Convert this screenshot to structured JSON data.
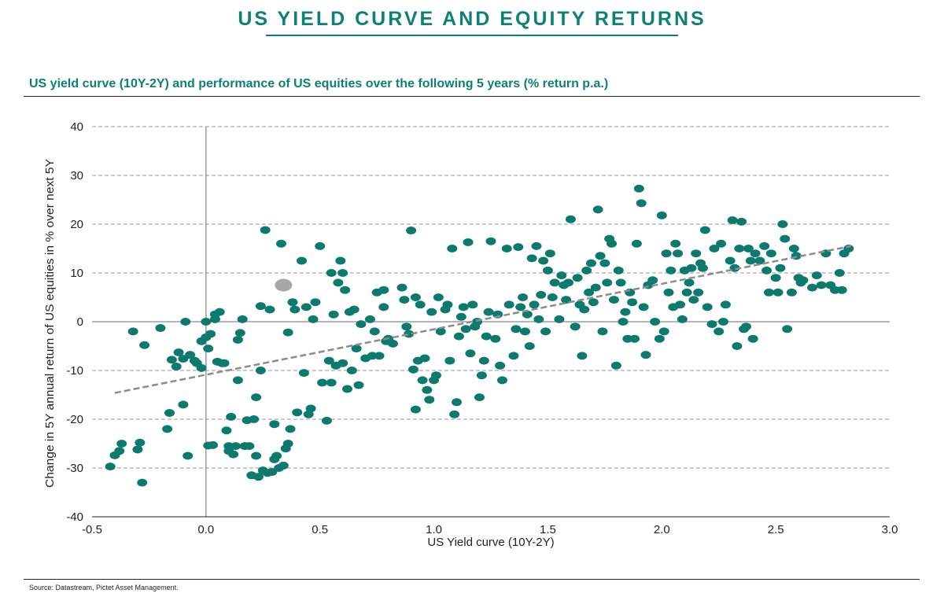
{
  "header": {
    "title": "US YIELD CURVE AND EQUITY RETURNS",
    "subtitle": "US yield curve (10Y-2Y) and performance of US equities over the following 5 years (% return p.a.)"
  },
  "footer": {
    "source": "Source: Datastream, Pictet Asset Management."
  },
  "colors": {
    "accent": "#0e8176",
    "point": "#0e7a6e",
    "highlight": "#a6a6a6",
    "trend": "#8c8c8c",
    "grid": "#9a9a9a"
  },
  "chart_data": {
    "type": "scatter",
    "title": "US yield curve (10Y-2Y) and performance of US equities over the following 5 years (% return p.a.)",
    "xlabel": "US Yield curve (10Y-2Y)",
    "ylabel": "Change in 5Y annual return of US equities in % over next 5Y",
    "xlim": [
      -0.5,
      3.0
    ],
    "ylim": [
      -40,
      40
    ],
    "x_ticks": [
      "-0.5",
      "0.0",
      "0.5",
      "1.0",
      "1.5",
      "2.0",
      "2.5",
      "3.0"
    ],
    "y_ticks": [
      "40",
      "30",
      "20",
      "10",
      "0",
      "-10",
      "-20",
      "-30",
      "-40"
    ],
    "grid": "horizontal dashed",
    "trendline": {
      "style": "dashed",
      "x": [
        -0.4,
        2.83
      ],
      "y": [
        -14.6,
        15.5
      ]
    },
    "highlight_point": {
      "x": 0.34,
      "y": 7.5
    },
    "series": [
      {
        "name": "Observations",
        "points": [
          [
            -0.42,
            -29.7
          ],
          [
            -0.4,
            -27.4
          ],
          [
            -0.38,
            -26.5
          ],
          [
            -0.37,
            -25
          ],
          [
            -0.32,
            -2
          ],
          [
            -0.3,
            -26.2
          ],
          [
            -0.29,
            -24.8
          ],
          [
            -0.28,
            -33
          ],
          [
            -0.27,
            -4.8
          ],
          [
            -0.2,
            -1.3
          ],
          [
            -0.17,
            -22
          ],
          [
            -0.16,
            -18.7
          ],
          [
            -0.15,
            -7.8
          ],
          [
            -0.13,
            -9.2
          ],
          [
            -0.12,
            -6.3
          ],
          [
            -0.1,
            -17
          ],
          [
            -0.1,
            -7.6
          ],
          [
            -0.09,
            0
          ],
          [
            -0.08,
            -27.5
          ],
          [
            -0.07,
            -6.8
          ],
          [
            -0.05,
            -8
          ],
          [
            -0.04,
            -8.5
          ],
          [
            -0.02,
            -4
          ],
          [
            -0.02,
            -9.5
          ],
          [
            0,
            -3.2
          ],
          [
            0,
            0
          ],
          [
            0.01,
            -25.4
          ],
          [
            0.01,
            -5.5
          ],
          [
            0.02,
            -2.5
          ],
          [
            0.03,
            -25.3
          ],
          [
            0.04,
            0.5
          ],
          [
            0.04,
            1.5
          ],
          [
            0.05,
            -8.2
          ],
          [
            0.06,
            2
          ],
          [
            0.07,
            -8.5
          ],
          [
            0.08,
            -8.5
          ],
          [
            0.09,
            -22.3
          ],
          [
            0.1,
            -25.5
          ],
          [
            0.1,
            -26.5
          ],
          [
            0.11,
            -19.5
          ],
          [
            0.12,
            -27.2
          ],
          [
            0.13,
            -25.5
          ],
          [
            0.14,
            -12
          ],
          [
            0.14,
            -3.7
          ],
          [
            0.15,
            -2.3
          ],
          [
            0.16,
            0.5
          ],
          [
            0.17,
            -25.5
          ],
          [
            0.18,
            -20.2
          ],
          [
            0.19,
            -25.5
          ],
          [
            0.2,
            -31.5
          ],
          [
            0.21,
            -20
          ],
          [
            0.22,
            -15.5
          ],
          [
            0.22,
            -27.5
          ],
          [
            0.23,
            -31.8
          ],
          [
            0.24,
            -10
          ],
          [
            0.24,
            3.2
          ],
          [
            0.25,
            -30.5
          ],
          [
            0.26,
            18.8
          ],
          [
            0.27,
            -31
          ],
          [
            0.28,
            2.5
          ],
          [
            0.29,
            -30.8
          ],
          [
            0.3,
            -28.2
          ],
          [
            0.3,
            -21
          ],
          [
            0.31,
            -27.5
          ],
          [
            0.32,
            -30
          ],
          [
            0.33,
            16
          ],
          [
            0.34,
            -29.5
          ],
          [
            0.35,
            -26
          ],
          [
            0.36,
            -25
          ],
          [
            0.36,
            -2.2
          ],
          [
            0.37,
            -22
          ],
          [
            0.38,
            4
          ],
          [
            0.39,
            2.5
          ],
          [
            0.4,
            -18.6
          ],
          [
            0.42,
            12.5
          ],
          [
            0.43,
            -10.5
          ],
          [
            0.44,
            3
          ],
          [
            0.45,
            -19
          ],
          [
            0.46,
            -17.8
          ],
          [
            0.47,
            0.5
          ],
          [
            0.48,
            4
          ],
          [
            0.5,
            15.5
          ],
          [
            0.51,
            -12.5
          ],
          [
            0.53,
            -20.3
          ],
          [
            0.54,
            -8
          ],
          [
            0.55,
            10
          ],
          [
            0.55,
            -12.5
          ],
          [
            0.56,
            1.5
          ],
          [
            0.57,
            -9
          ],
          [
            0.58,
            8
          ],
          [
            0.59,
            12.5
          ],
          [
            0.6,
            -8.5
          ],
          [
            0.6,
            10
          ],
          [
            0.61,
            6.5
          ],
          [
            0.62,
            -13.8
          ],
          [
            0.63,
            2
          ],
          [
            0.64,
            -10
          ],
          [
            0.65,
            2.5
          ],
          [
            0.66,
            -5.5
          ],
          [
            0.67,
            -13
          ],
          [
            0.68,
            -0.5
          ],
          [
            0.7,
            -7.5
          ],
          [
            0.72,
            0.5
          ],
          [
            0.73,
            -7
          ],
          [
            0.74,
            -2
          ],
          [
            0.75,
            6
          ],
          [
            0.76,
            -7
          ],
          [
            0.78,
            3
          ],
          [
            0.78,
            6.5
          ],
          [
            0.79,
            -4
          ],
          [
            0.8,
            -3.5
          ],
          [
            0.82,
            -4.5
          ],
          [
            0.86,
            7
          ],
          [
            0.87,
            4.5
          ],
          [
            0.88,
            -1
          ],
          [
            0.89,
            -2.5
          ],
          [
            0.9,
            18.7
          ],
          [
            0.91,
            -9.8
          ],
          [
            0.92,
            -18
          ],
          [
            0.92,
            5
          ],
          [
            0.93,
            -8
          ],
          [
            0.94,
            3.5
          ],
          [
            0.95,
            -12
          ],
          [
            0.96,
            -7.5
          ],
          [
            0.97,
            -14
          ],
          [
            0.98,
            -16
          ],
          [
            0.99,
            2
          ],
          [
            1.0,
            -12
          ],
          [
            1.01,
            -11
          ],
          [
            1.02,
            5
          ],
          [
            1.03,
            -2
          ],
          [
            1.05,
            2.5
          ],
          [
            1.06,
            3.5
          ],
          [
            1.07,
            -8
          ],
          [
            1.08,
            15
          ],
          [
            1.09,
            -19
          ],
          [
            1.1,
            -16.5
          ],
          [
            1.11,
            -3
          ],
          [
            1.12,
            1
          ],
          [
            1.13,
            3
          ],
          [
            1.14,
            -1.5
          ],
          [
            1.15,
            16.3
          ],
          [
            1.16,
            -6.5
          ],
          [
            1.17,
            3.5
          ],
          [
            1.18,
            -1
          ],
          [
            1.19,
            0
          ],
          [
            1.2,
            -15.5
          ],
          [
            1.21,
            -11
          ],
          [
            1.22,
            -8
          ],
          [
            1.23,
            -3
          ],
          [
            1.24,
            2
          ],
          [
            1.25,
            16.5
          ],
          [
            1.27,
            -3.5
          ],
          [
            1.28,
            1.5
          ],
          [
            1.29,
            -9
          ],
          [
            1.3,
            -12
          ],
          [
            1.32,
            15
          ],
          [
            1.33,
            3.5
          ],
          [
            1.35,
            -7
          ],
          [
            1.36,
            -1.5
          ],
          [
            1.37,
            15.3
          ],
          [
            1.38,
            3
          ],
          [
            1.39,
            5
          ],
          [
            1.4,
            -2
          ],
          [
            1.41,
            1.5
          ],
          [
            1.42,
            -5
          ],
          [
            1.43,
            13
          ],
          [
            1.44,
            3.5
          ],
          [
            1.45,
            15.5
          ],
          [
            1.46,
            0.5
          ],
          [
            1.47,
            5.5
          ],
          [
            1.48,
            12.5
          ],
          [
            1.49,
            -2
          ],
          [
            1.5,
            10.5
          ],
          [
            1.51,
            14
          ],
          [
            1.52,
            5
          ],
          [
            1.53,
            8
          ],
          [
            1.55,
            0.5
          ],
          [
            1.56,
            9.5
          ],
          [
            1.57,
            7.5
          ],
          [
            1.58,
            4.5
          ],
          [
            1.59,
            8
          ],
          [
            1.6,
            21
          ],
          [
            1.62,
            -1
          ],
          [
            1.63,
            9
          ],
          [
            1.64,
            3.5
          ],
          [
            1.65,
            -7
          ],
          [
            1.66,
            2.5
          ],
          [
            1.67,
            10.5
          ],
          [
            1.68,
            6
          ],
          [
            1.69,
            12
          ],
          [
            1.7,
            4
          ],
          [
            1.71,
            7
          ],
          [
            1.72,
            23
          ],
          [
            1.73,
            13.5
          ],
          [
            1.74,
            -2
          ],
          [
            1.75,
            12
          ],
          [
            1.76,
            8
          ],
          [
            1.77,
            17
          ],
          [
            1.78,
            16
          ],
          [
            1.79,
            4.5
          ],
          [
            1.8,
            -9
          ],
          [
            1.81,
            10.5
          ],
          [
            1.82,
            8
          ],
          [
            1.83,
            0
          ],
          [
            1.84,
            2
          ],
          [
            1.85,
            -3.5
          ],
          [
            1.86,
            6
          ],
          [
            1.87,
            4
          ],
          [
            1.88,
            -3.5
          ],
          [
            1.89,
            16
          ],
          [
            1.9,
            27.3
          ],
          [
            1.91,
            24.3
          ],
          [
            1.92,
            3
          ],
          [
            1.93,
            -6.8
          ],
          [
            1.94,
            7.5
          ],
          [
            1.96,
            8.5
          ],
          [
            1.97,
            0
          ],
          [
            1.99,
            -3.5
          ],
          [
            2.0,
            21.8
          ],
          [
            2.01,
            -2
          ],
          [
            2.02,
            14
          ],
          [
            2.03,
            6
          ],
          [
            2.04,
            10.5
          ],
          [
            2.05,
            3
          ],
          [
            2.06,
            16
          ],
          [
            2.07,
            14
          ],
          [
            2.08,
            3.5
          ],
          [
            2.09,
            0.5
          ],
          [
            2.1,
            10.5
          ],
          [
            2.11,
            6
          ],
          [
            2.12,
            8
          ],
          [
            2.13,
            11
          ],
          [
            2.14,
            4.5
          ],
          [
            2.15,
            14
          ],
          [
            2.16,
            6
          ],
          [
            2.17,
            12
          ],
          [
            2.18,
            11
          ],
          [
            2.19,
            18.8
          ],
          [
            2.2,
            3
          ],
          [
            2.22,
            -0.5
          ],
          [
            2.23,
            15
          ],
          [
            2.25,
            -2
          ],
          [
            2.26,
            16
          ],
          [
            2.27,
            0
          ],
          [
            2.28,
            3.5
          ],
          [
            2.3,
            12.5
          ],
          [
            2.31,
            20.8
          ],
          [
            2.32,
            11
          ],
          [
            2.33,
            -5
          ],
          [
            2.34,
            15
          ],
          [
            2.35,
            20.5
          ],
          [
            2.36,
            -1.5
          ],
          [
            2.37,
            -1
          ],
          [
            2.38,
            15
          ],
          [
            2.39,
            12.5
          ],
          [
            2.4,
            -3.5
          ],
          [
            2.41,
            14
          ],
          [
            2.43,
            12.5
          ],
          [
            2.45,
            15.5
          ],
          [
            2.46,
            10.5
          ],
          [
            2.47,
            6
          ],
          [
            2.48,
            14
          ],
          [
            2.5,
            9
          ],
          [
            2.51,
            6
          ],
          [
            2.52,
            11
          ],
          [
            2.53,
            20
          ],
          [
            2.54,
            17
          ],
          [
            2.55,
            -1.5
          ],
          [
            2.57,
            6
          ],
          [
            2.58,
            15
          ],
          [
            2.59,
            13.5
          ],
          [
            2.6,
            9
          ],
          [
            2.61,
            8
          ],
          [
            2.62,
            8.5
          ],
          [
            2.66,
            7
          ],
          [
            2.68,
            9.5
          ],
          [
            2.7,
            7.5
          ],
          [
            2.72,
            14
          ],
          [
            2.74,
            7.5
          ],
          [
            2.76,
            6.5
          ],
          [
            2.78,
            10
          ],
          [
            2.79,
            6.5
          ],
          [
            2.8,
            14
          ],
          [
            2.82,
            15
          ]
        ]
      }
    ]
  }
}
